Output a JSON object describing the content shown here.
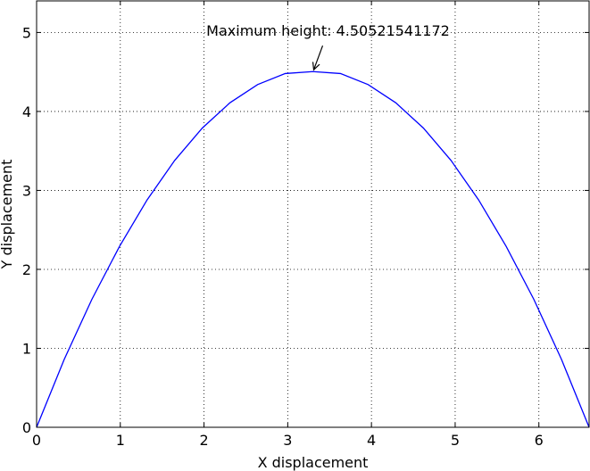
{
  "chart_data": {
    "type": "line",
    "title": "",
    "xlabel": "X displacement",
    "ylabel": "Y displacement",
    "xlim": [
      0,
      6.6
    ],
    "ylim": [
      0,
      5.4
    ],
    "xticks": [
      0,
      1,
      2,
      3,
      4,
      5,
      6
    ],
    "yticks": [
      0,
      1,
      2,
      3,
      4,
      5
    ],
    "grid": true,
    "grid_style": "dotted",
    "series": [
      {
        "color": "#0000ff",
        "x": [
          0,
          0.33,
          0.66,
          0.99,
          1.32,
          1.65,
          1.98,
          2.31,
          2.64,
          2.97,
          3.3,
          3.63,
          3.96,
          4.29,
          4.62,
          4.95,
          5.28,
          5.61,
          5.94,
          6.27,
          6.6
        ],
        "y": [
          0,
          0.86,
          1.62,
          2.29,
          2.88,
          3.38,
          3.79,
          4.11,
          4.34,
          4.48,
          4.505,
          4.48,
          4.34,
          4.11,
          3.79,
          3.38,
          2.88,
          2.29,
          1.62,
          0.86,
          0
        ]
      }
    ],
    "annotation": {
      "text": "Maximum height: 4.50521541172",
      "point": [
        3.3,
        4.505
      ],
      "text_anchor": "above"
    }
  }
}
